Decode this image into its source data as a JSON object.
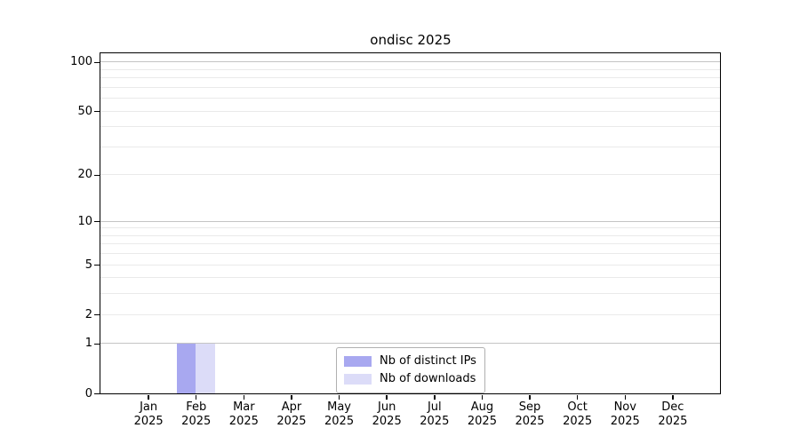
{
  "chart_data": {
    "type": "bar",
    "title": "ondisc 2025",
    "x_axis": {
      "months": [
        "Jan",
        "Feb",
        "Mar",
        "Apr",
        "May",
        "Jun",
        "Jul",
        "Aug",
        "Sep",
        "Oct",
        "Nov",
        "Dec"
      ],
      "year": "2025"
    },
    "y_axis": {
      "scale": "log1p",
      "ticks": [
        0,
        1,
        2,
        5,
        10,
        20,
        50,
        100
      ],
      "minor_gridlines": [
        3,
        4,
        6,
        7,
        8,
        9,
        30,
        40,
        60,
        70,
        80,
        90
      ],
      "emphasized_gridlines": [
        1,
        10,
        100
      ],
      "range_top_value": 113
    },
    "series": [
      {
        "name": "Nb of distinct IPs",
        "color": "#a8a8f0",
        "values": [
          0,
          1,
          0,
          0,
          0,
          0,
          0,
          0,
          0,
          0,
          0,
          0
        ]
      },
      {
        "name": "Nb of downloads",
        "color": "#dcdcf8",
        "values": [
          0,
          1,
          0,
          0,
          0,
          0,
          0,
          0,
          0,
          0,
          0,
          0
        ]
      }
    ],
    "grid": true,
    "legend_position": "lower center"
  },
  "colors": {
    "background": "#ffffff",
    "spine": "#000000",
    "grid_major": "#c4c4c4",
    "grid_minor": "#eaeaea",
    "legend_border": "#b0b0b0",
    "text": "#000000"
  }
}
